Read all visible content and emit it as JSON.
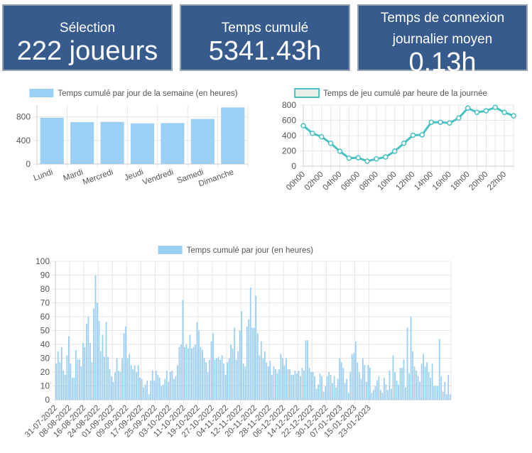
{
  "cards": {
    "selection": {
      "label": "Sélection",
      "value": "222 joueurs"
    },
    "cumul": {
      "label": "Temps cumulé",
      "value": "5341.43h"
    },
    "daily": {
      "label_line1": "Temps de connexion",
      "label_line2": "journalier moyen",
      "value": "0.13h"
    }
  },
  "chart_data": [
    {
      "type": "bar",
      "legend": "Temps cumulé par jour de la semaine (en heures)",
      "categories": [
        "Lundi",
        "Mardi",
        "Mercredi",
        "Jeudi",
        "Vendredi",
        "Samedi",
        "Dimanche"
      ],
      "values": [
        785,
        710,
        715,
        690,
        695,
        765,
        960
      ],
      "ylim": [
        0,
        1000
      ],
      "yticks": [
        0,
        400,
        800
      ],
      "color": "#9ccff4"
    },
    {
      "type": "line",
      "legend": "Temps de jeu cumulé par heure de la journée",
      "x": [
        "00h00",
        "01h00",
        "02h00",
        "03h00",
        "04h00",
        "05h00",
        "06h00",
        "07h00",
        "08h00",
        "09h00",
        "10h00",
        "11h00",
        "12h00",
        "13h00",
        "14h00",
        "15h00",
        "16h00",
        "17h00",
        "18h00",
        "19h00",
        "20h00",
        "21h00",
        "22h00",
        "23h00"
      ],
      "xticks": [
        "00h00",
        "02h00",
        "04h00",
        "06h00",
        "08h00",
        "10h00",
        "12h00",
        "14h00",
        "16h00",
        "18h00",
        "20h00",
        "22h00"
      ],
      "values": [
        530,
        430,
        385,
        300,
        195,
        105,
        110,
        65,
        95,
        120,
        195,
        300,
        405,
        410,
        575,
        575,
        565,
        630,
        760,
        705,
        725,
        770,
        705,
        660
      ],
      "ylim": [
        0,
        800
      ],
      "yticks": [
        0,
        200,
        400,
        600,
        800
      ],
      "color": "#4bc0c0"
    },
    {
      "type": "bar",
      "legend": "Temps cumulé par jour (en heures)",
      "xticks": [
        "31-07-2022",
        "08-08-2022",
        "16-08-2022",
        "24-08-2022",
        "01-09-2022",
        "09-09-2022",
        "17-09-2022",
        "25-09-2022",
        "03-10-2022",
        "11-10-2022",
        "19-10-2022",
        "27-10-2022",
        "04-11-2022",
        "12-11-2022",
        "20-11-2022",
        "28-11-2022",
        "06-12-2022",
        "14-12-2022",
        "22-12-2022",
        "30-12-2022",
        "07-01-2023",
        "15-01-2023",
        "23-01-2023"
      ],
      "values": [
        26,
        35,
        27,
        38,
        21,
        18,
        32,
        46,
        26,
        16,
        16,
        36,
        29,
        29,
        24,
        41,
        38,
        55,
        60,
        41,
        27,
        66,
        90,
        70,
        57,
        35,
        47,
        31,
        56,
        31,
        22,
        17,
        13,
        20,
        30,
        21,
        20,
        30,
        48,
        53,
        30,
        33,
        25,
        22,
        25,
        20,
        25,
        16,
        15,
        9,
        11,
        14,
        4,
        14,
        21,
        14,
        21,
        18,
        16,
        10,
        11,
        15,
        21,
        13,
        20,
        21,
        15,
        17,
        25,
        38,
        40,
        72,
        38,
        40,
        37,
        47,
        37,
        38,
        40,
        56,
        50,
        38,
        36,
        30,
        27,
        20,
        29,
        42,
        48,
        29,
        30,
        31,
        29,
        32,
        26,
        18,
        27,
        30,
        40,
        37,
        52,
        29,
        35,
        50,
        64,
        26,
        24,
        53,
        58,
        81,
        52,
        52,
        75,
        48,
        32,
        42,
        30,
        35,
        27,
        24,
        28,
        18,
        24,
        22,
        19,
        22,
        33,
        30,
        25,
        30,
        22,
        22,
        18,
        18,
        21,
        19,
        21,
        17,
        23,
        21,
        43,
        43,
        23,
        20,
        20,
        17,
        8,
        11,
        19,
        17,
        6,
        10,
        17,
        20,
        18,
        12,
        17,
        9,
        15,
        30,
        27,
        23,
        12,
        15,
        5,
        20,
        33,
        34,
        42,
        27,
        20,
        15,
        30,
        25,
        13,
        25,
        23,
        5,
        7,
        10,
        14,
        17,
        7,
        5,
        16,
        11,
        7,
        21,
        8,
        32,
        20,
        14,
        11,
        23,
        23,
        29,
        9,
        52,
        19,
        60,
        35,
        24,
        21,
        17,
        13,
        26,
        33,
        24,
        27,
        20,
        16,
        26,
        10,
        10,
        10,
        44,
        17,
        6,
        13,
        4,
        18,
        4
      ],
      "ylim": [
        0,
        100
      ],
      "yticks": [
        0,
        10,
        20,
        30,
        40,
        50,
        60,
        70,
        80,
        90,
        100
      ],
      "color": "#9ccff4"
    }
  ]
}
